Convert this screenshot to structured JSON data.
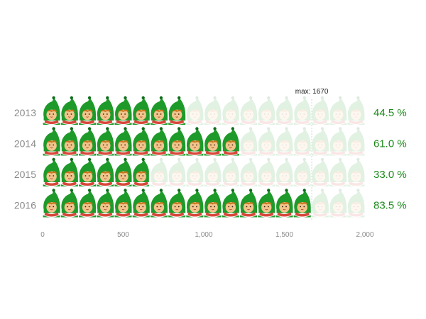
{
  "chart_data": {
    "type": "pictorial-bar",
    "icon": "elf-head-icon",
    "max_value": 2000,
    "icons_per_row": 18,
    "xlim": [
      0,
      2000
    ],
    "xticks": [
      0,
      500,
      1000,
      1500,
      2000
    ],
    "xtick_labels": [
      "0",
      "500",
      "1,000",
      "1,500",
      "2,000"
    ],
    "categories": [
      "2013",
      "2014",
      "2015",
      "2016"
    ],
    "values": [
      890,
      1220,
      660,
      1670
    ],
    "percent_labels": [
      "44.5 %",
      "61.0 %",
      "33.0 %",
      "83.5 %"
    ],
    "marker": {
      "value": 1670,
      "label": "max: 1670"
    },
    "colors": {
      "hood": "#1e9a2a",
      "hood_dark": "#0f6e1c",
      "face": "#f2c48c",
      "hair": "#c8761f",
      "collar": "#d7473a",
      "faded_opacity": 0.13,
      "percent_text": "#1a8a1a",
      "year_text": "#8a8a8a",
      "axis_text": "#8a8a8a",
      "marker_line": "#c9dcc9"
    }
  }
}
